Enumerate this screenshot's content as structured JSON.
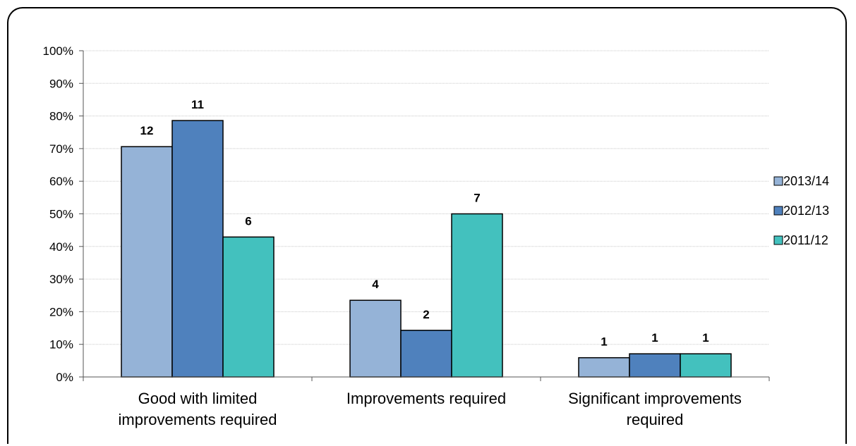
{
  "chart_data": {
    "type": "bar",
    "title": "",
    "xlabel": "",
    "ylabel": "",
    "ylim": [
      0,
      100
    ],
    "yticks": [
      "0%",
      "10%",
      "20%",
      "30%",
      "40%",
      "50%",
      "60%",
      "70%",
      "80%",
      "90%",
      "100%"
    ],
    "grid": true,
    "legend_position": "right",
    "categories": [
      [
        "Good with limited",
        "improvements required"
      ],
      [
        "Improvements required"
      ],
      [
        "Significant improvements",
        "required"
      ]
    ],
    "series": [
      {
        "name": "2013/14",
        "color": "#95B3D7",
        "values": [
          70.6,
          23.5,
          5.9
        ],
        "labels": [
          "12",
          "4",
          "1"
        ]
      },
      {
        "name": "2012/13",
        "color": "#4F81BD",
        "values": [
          78.6,
          14.3,
          7.1
        ],
        "labels": [
          "11",
          "2",
          "1"
        ]
      },
      {
        "name": "2011/12",
        "color": "#43C1BE",
        "values": [
          42.9,
          50.0,
          7.1
        ],
        "labels": [
          "6",
          "7",
          "1"
        ]
      }
    ]
  }
}
